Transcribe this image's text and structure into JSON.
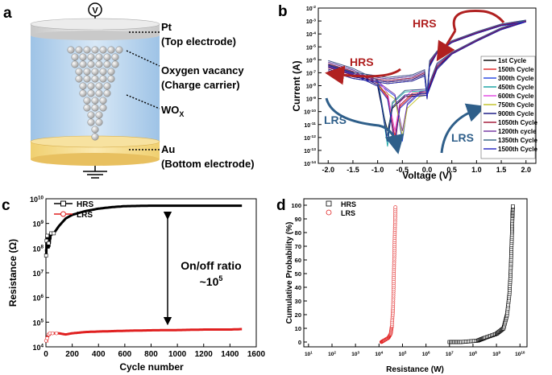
{
  "panels": {
    "a": {
      "letter": "a",
      "voltmeter": "V",
      "top_electrode": {
        "line1": "Pt",
        "line2": "(Top electrode)"
      },
      "vacancy": {
        "line1": "Oxygen vacancy",
        "line2": "(Charge carrier)"
      },
      "oxide": {
        "main": "WO",
        "sub": "X"
      },
      "bottom_electrode": {
        "line1": "Au",
        "line2": "(Bottom electrode)"
      }
    },
    "b_letter": "b",
    "c_letter": "c",
    "d_letter": "d"
  },
  "chart_data": [
    {
      "id": "b",
      "type": "line",
      "xlabel": "Voltage (V)",
      "ylabel": "Current (A)",
      "xlim": [
        -2.2,
        2.2
      ],
      "ylim_log10": [
        -14,
        -2
      ],
      "x_ticks": [
        "-2.0",
        "-1.5",
        "-1.0",
        "-0.5",
        "0.0",
        "0.5",
        "1.0",
        "1.5",
        "2.0"
      ],
      "x_tick_values": [
        -2.0,
        -1.5,
        -1.0,
        -0.5,
        0.0,
        0.5,
        1.0,
        1.5,
        2.0
      ],
      "y_ticks": [
        "10-14",
        "10-13",
        "10-12",
        "10-11",
        "10-10",
        "10-9",
        "10-8",
        "10-7",
        "10-6",
        "10-5",
        "10-4",
        "10-3",
        "10-2"
      ],
      "y_tick_exponents": [
        -14,
        -13,
        -12,
        -11,
        -10,
        -9,
        -8,
        -7,
        -6,
        -5,
        -4,
        -3,
        -2
      ],
      "annotations": [
        "HRS",
        "HRS",
        "LRS",
        "LRS"
      ],
      "series": [
        {
          "name": "1st Cycle",
          "color": "#000000"
        },
        {
          "name": "150th Cycle",
          "color": "#e02020"
        },
        {
          "name": "300th Cycle",
          "color": "#2040e0"
        },
        {
          "name": "450th Cycle",
          "color": "#10a0a0"
        },
        {
          "name": "600th Cycle",
          "color": "#e040e0"
        },
        {
          "name": "750th Cycle",
          "color": "#c0c020"
        },
        {
          "name": "900th Cycle",
          "color": "#101080"
        },
        {
          "name": "1050th Cycle",
          "color": "#a01030"
        },
        {
          "name": "1200th cycle",
          "color": "#7030a0"
        },
        {
          "name": "1350th Cycle",
          "color": "#306080"
        },
        {
          "name": "1500th Cycle",
          "color": "#2020c0"
        }
      ],
      "curve_points_log10": [
        [
          -2.0,
          -6.3
        ],
        [
          -1.5,
          -6.9
        ],
        [
          -1.0,
          -7.8
        ],
        [
          -0.8,
          -8.8
        ],
        [
          -0.65,
          -11.5
        ],
        [
          -0.55,
          -9.5
        ],
        [
          -0.3,
          -8.6
        ],
        [
          0.0,
          -8.5
        ],
        [
          0.1,
          -7.5
        ],
        [
          0.2,
          -6.5
        ],
        [
          0.5,
          -5.5
        ],
        [
          1.0,
          -4.5
        ],
        [
          1.5,
          -3.6
        ],
        [
          2.0,
          -3.0
        ],
        [
          1.5,
          -3.3
        ],
        [
          1.0,
          -3.9
        ],
        [
          0.5,
          -4.6
        ],
        [
          0.2,
          -5.4
        ],
        [
          0.05,
          -6.3
        ],
        [
          0.0,
          -8.8
        ],
        [
          -0.05,
          -7.0
        ],
        [
          -0.3,
          -7.4
        ],
        [
          -0.8,
          -7.6
        ],
        [
          -1.5,
          -7.2
        ],
        [
          -2.0,
          -6.6
        ]
      ]
    },
    {
      "id": "c",
      "type": "scatter",
      "xlabel": "Cycle number",
      "ylabel": "Resistance (Ω)",
      "xlim": [
        0,
        1600
      ],
      "ylim_log10": [
        4,
        10
      ],
      "x_ticks": [
        "0",
        "200",
        "400",
        "600",
        "800",
        "1000",
        "1200",
        "1400",
        "1600"
      ],
      "x_tick_values": [
        0,
        200,
        400,
        600,
        800,
        1000,
        1200,
        1400,
        1600
      ],
      "y_ticks": [
        "10^4",
        "10^5",
        "10^6",
        "10^7",
        "10^8",
        "10^9",
        "10^10"
      ],
      "y_tick_exponents": [
        4,
        5,
        6,
        7,
        8,
        9,
        10
      ],
      "annotation": {
        "line1": "On/off ratio",
        "line2_base": "~10",
        "line2_exp": "5"
      },
      "series": [
        {
          "name": "HRS",
          "color": "#000000",
          "marker": "square",
          "x": [
            1,
            5,
            10,
            20,
            40,
            60,
            100,
            150,
            200,
            300,
            400,
            500,
            600,
            700,
            800,
            1000,
            1200,
            1400,
            1500
          ],
          "log10": [
            7.7,
            8.3,
            8.5,
            8.2,
            8.6,
            8.6,
            8.9,
            9.2,
            9.35,
            9.5,
            9.6,
            9.66,
            9.7,
            9.71,
            9.72,
            9.72,
            9.72,
            9.72,
            9.72
          ]
        },
        {
          "name": "LRS",
          "color": "#e02020",
          "marker": "circle",
          "x": [
            1,
            10,
            20,
            30,
            50,
            80,
            100,
            150,
            200,
            300,
            400,
            600,
            800,
            1000,
            1200,
            1400,
            1500
          ],
          "log10": [
            4.25,
            4.35,
            4.5,
            4.55,
            4.55,
            4.55,
            4.55,
            4.5,
            4.55,
            4.6,
            4.62,
            4.65,
            4.67,
            4.68,
            4.7,
            4.7,
            4.72
          ]
        }
      ]
    },
    {
      "id": "d",
      "type": "scatter",
      "xlabel": "Resistance (W)",
      "ylabel": "Cumulative Probability (%)",
      "xlim_log10": [
        1,
        10
      ],
      "ylim": [
        0,
        100
      ],
      "x_ticks": [
        "10^1",
        "10^2",
        "10^3",
        "10^4",
        "10^5",
        "10^6",
        "10^7",
        "10^8",
        "10^9",
        "10^10"
      ],
      "x_tick_exponents": [
        1,
        2,
        3,
        4,
        5,
        6,
        7,
        8,
        9,
        10
      ],
      "y_ticks": [
        "0",
        "10",
        "20",
        "30",
        "40",
        "50",
        "60",
        "70",
        "80",
        "90",
        "100"
      ],
      "y_tick_values": [
        0,
        10,
        20,
        30,
        40,
        50,
        60,
        70,
        80,
        90,
        100
      ],
      "series": [
        {
          "name": "HRS",
          "color": "#000000",
          "marker": "square",
          "log10": [
            7.0,
            7.5,
            8.2,
            8.5,
            9.0,
            9.3,
            9.45,
            9.55,
            9.6,
            9.63,
            9.66,
            9.68,
            9.7
          ],
          "prob": [
            0,
            0,
            1,
            3,
            6,
            10,
            20,
            35,
            50,
            65,
            80,
            92,
            100
          ]
        },
        {
          "name": "LRS",
          "color": "#e02020",
          "marker": "circle",
          "log10": [
            4.1,
            4.2,
            4.4,
            4.5,
            4.55,
            4.6,
            4.62,
            4.64,
            4.66,
            4.68,
            4.7
          ],
          "prob": [
            0,
            1,
            3,
            6,
            12,
            25,
            40,
            55,
            70,
            85,
            100
          ]
        }
      ]
    }
  ]
}
